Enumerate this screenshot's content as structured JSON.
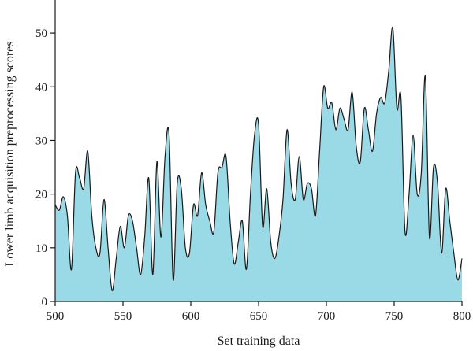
{
  "chart_data": {
    "type": "area",
    "title": "",
    "xlabel": "Set training data",
    "ylabel": "Lower limb acquisition preprocessing scores",
    "xlim": [
      500,
      800
    ],
    "ylim": [
      0,
      55
    ],
    "xticks": [
      500,
      550,
      600,
      650,
      700,
      750,
      800
    ],
    "yticks": [
      0,
      10,
      20,
      30,
      40,
      50
    ],
    "grid": false,
    "legend": "none",
    "fill_color": "#9ad9e6",
    "line_color": "#1a1a1a",
    "series": [
      {
        "x": [
          500,
          503,
          506,
          509,
          512,
          515,
          518,
          521,
          524,
          527,
          530,
          533,
          536,
          539,
          542,
          545,
          548,
          551,
          554,
          557,
          560,
          563,
          566,
          569,
          572,
          575,
          578,
          581,
          584,
          587,
          590,
          593,
          596,
          599,
          602,
          605,
          608,
          611,
          614,
          617,
          620,
          623,
          626,
          629,
          632,
          635,
          638,
          641,
          644,
          647,
          650,
          653,
          656,
          659,
          662,
          665,
          668,
          671,
          674,
          677,
          680,
          683,
          686,
          689,
          692,
          695,
          698,
          701,
          704,
          707,
          710,
          713,
          716,
          719,
          722,
          725,
          728,
          731,
          734,
          737,
          740,
          743,
          746,
          749,
          752,
          755,
          758,
          761,
          764,
          767,
          770,
          773,
          776,
          779,
          782,
          785,
          788,
          791,
          794,
          797,
          800
        ],
        "values": [
          18,
          17,
          19.5,
          16,
          6,
          24,
          23,
          21,
          28,
          16,
          10,
          9,
          19,
          10,
          2,
          8,
          14,
          10,
          16,
          15,
          10,
          5,
          12,
          23,
          5,
          26,
          12,
          27,
          31,
          4,
          22,
          21,
          10,
          9,
          18,
          16,
          24,
          18,
          15,
          13,
          24,
          25,
          27,
          15,
          7,
          11,
          15,
          6,
          20,
          31,
          33,
          14,
          21,
          11,
          8,
          12,
          19,
          32,
          22,
          19,
          27,
          19,
          22,
          21,
          16,
          28,
          40,
          36,
          37,
          32,
          36,
          34,
          32,
          39,
          29,
          26,
          36,
          32,
          28,
          35,
          38,
          37,
          43,
          51,
          36,
          38,
          13,
          20,
          31,
          20,
          24,
          42,
          12,
          25,
          22,
          9,
          21,
          15,
          9,
          4,
          8
        ]
      }
    ]
  }
}
